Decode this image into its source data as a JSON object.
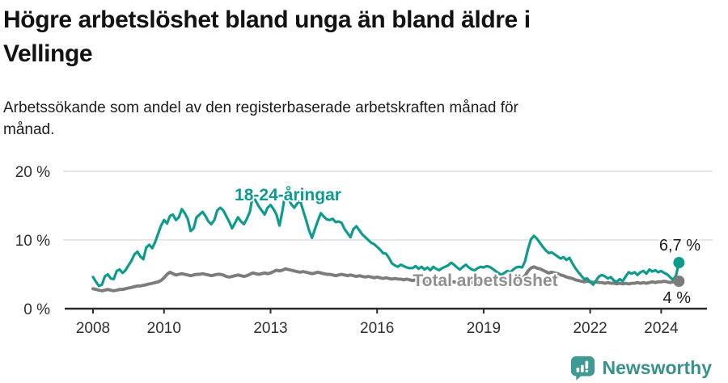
{
  "header": {
    "title_lines": [
      "Högre arbetslöshet bland unga än bland äldre i",
      "Vellinge"
    ],
    "subtitle_lines": [
      "Arbetssökande som andel av den registerbaserade arbetskraften månad för",
      "månad."
    ]
  },
  "chart_data": {
    "type": "line",
    "title": "Högre arbetslöshet bland unga än bland äldre i Vellinge",
    "subtitle": "Arbetssökande som andel av den registerbaserade arbetskraften månad för månad.",
    "unit": "%",
    "x_start_year": 2008,
    "x_step_months": 1,
    "x_end_label_values": [
      "6,7 %",
      "4 %"
    ],
    "ylim": [
      0,
      20
    ],
    "grid": "horizontal",
    "y_ticks": [
      {
        "value": 0,
        "label": "0 %"
      },
      {
        "value": 10,
        "label": "10 %"
      },
      {
        "value": 20,
        "label": "20 %"
      }
    ],
    "x_ticks": [
      {
        "year": 2008,
        "label": "2008"
      },
      {
        "year": 2010,
        "label": "2010"
      },
      {
        "year": 2013,
        "label": "2013"
      },
      {
        "year": 2016,
        "label": "2016"
      },
      {
        "year": 2019,
        "label": "2019"
      },
      {
        "year": 2022,
        "label": "2022"
      },
      {
        "year": 2024,
        "label": "2024"
      }
    ],
    "series": [
      {
        "name": "18-24-åringar",
        "color": "#0d9b8d",
        "label_color": "#0d9b8d",
        "end_label": "6,7 %",
        "last_value": 6.7,
        "values": [
          4.6,
          3.9,
          3.3,
          3.5,
          4.7,
          5.0,
          4.4,
          4.3,
          5.5,
          5.7,
          5.2,
          5.6,
          6.3,
          7.0,
          7.9,
          8.3,
          7.6,
          7.2,
          8.9,
          9.3,
          8.8,
          9.7,
          10.9,
          12.1,
          12.9,
          12.4,
          13.5,
          13.7,
          12.9,
          13.3,
          14.5,
          13.9,
          13.1,
          11.3,
          11.7,
          13.3,
          13.7,
          14.1,
          13.5,
          12.7,
          12.3,
          12.9,
          14.3,
          14.7,
          14.3,
          13.5,
          12.7,
          11.7,
          12.5,
          13.3,
          12.7,
          12.3,
          13.1,
          14.1,
          16.5,
          15.7,
          14.9,
          14.3,
          13.7,
          14.7,
          15.1,
          14.5,
          13.7,
          12.1,
          14.2,
          16.9,
          16.0,
          15.2,
          14.7,
          15.3,
          15.7,
          14.3,
          12.9,
          11.4,
          10.3,
          11.6,
          12.8,
          13.9,
          13.4,
          13.0,
          12.9,
          13.1,
          12.6,
          12.7,
          12.5,
          11.6,
          11.0,
          10.4,
          11.6,
          12.0,
          11.4,
          10.8,
          10.4,
          10.0,
          9.6,
          9.4,
          9.0,
          8.6,
          8.1,
          8.0,
          7.4,
          6.6,
          6.3,
          6.1,
          6.4,
          6.2,
          6.0,
          5.9,
          5.9,
          6.2,
          5.8,
          6.1,
          5.7,
          6.0,
          5.6,
          6.1,
          5.8,
          5.6,
          5.9,
          6.1,
          6.3,
          6.7,
          6.4,
          6.0,
          5.7,
          6.1,
          6.4,
          6.0,
          5.7,
          5.6,
          5.9,
          6.1,
          6.0,
          6.2,
          6.1,
          5.8,
          5.5,
          5.2,
          4.9,
          5.2,
          5.5,
          5.3,
          5.7,
          6.0,
          6.1,
          6.0,
          6.9,
          8.7,
          10.1,
          10.6,
          10.2,
          9.6,
          9.0,
          8.5,
          8.1,
          8.2,
          7.9,
          7.6,
          7.3,
          7.5,
          7.1,
          7.4,
          6.6,
          5.9,
          5.3,
          4.8,
          4.3,
          4.4,
          3.9,
          3.5,
          4.1,
          4.7,
          4.9,
          4.7,
          4.4,
          4.6,
          4.1,
          3.9,
          4.3,
          4.0,
          4.7,
          5.3,
          5.1,
          5.3,
          4.9,
          5.3,
          5.5,
          5.1,
          5.7,
          5.4,
          5.6,
          5.3,
          5.5,
          5.2,
          5.0,
          4.6,
          4.2,
          4.8,
          6.7
        ]
      },
      {
        "name": "Total arbetslöshet",
        "color": "#7c7c7c",
        "label_color": "#8f8f8f",
        "end_label": "4 %",
        "last_value": 4.0,
        "values": [
          2.9,
          2.8,
          2.7,
          2.6,
          2.7,
          2.8,
          2.7,
          2.6,
          2.7,
          2.8,
          2.8,
          2.9,
          3.0,
          3.1,
          3.2,
          3.3,
          3.3,
          3.4,
          3.5,
          3.6,
          3.7,
          3.8,
          3.9,
          4.1,
          4.5,
          5.0,
          5.3,
          5.1,
          4.9,
          5.0,
          5.1,
          5.0,
          4.9,
          4.8,
          4.9,
          5.0,
          5.0,
          5.1,
          5.0,
          4.9,
          4.8,
          4.9,
          5.0,
          5.0,
          4.9,
          4.7,
          4.6,
          4.7,
          4.8,
          4.9,
          4.8,
          4.7,
          4.8,
          5.0,
          5.2,
          5.1,
          5.0,
          5.1,
          5.2,
          5.1,
          5.2,
          5.4,
          5.6,
          5.5,
          5.6,
          5.8,
          5.7,
          5.6,
          5.5,
          5.4,
          5.3,
          5.4,
          5.3,
          5.2,
          5.1,
          5.2,
          5.3,
          5.2,
          5.1,
          5.0,
          5.0,
          4.9,
          4.8,
          4.9,
          5.0,
          4.9,
          4.8,
          4.9,
          4.8,
          4.7,
          4.8,
          4.7,
          4.6,
          4.7,
          4.6,
          4.5,
          4.6,
          4.5,
          4.4,
          4.5,
          4.4,
          4.3,
          4.4,
          4.3,
          4.3,
          4.2,
          4.3,
          4.2,
          4.1,
          4.2,
          4.1,
          4.0,
          4.1,
          4.0,
          4.0,
          3.9,
          4.0,
          3.9,
          4.0,
          3.9,
          4.0,
          3.9,
          3.9,
          3.8,
          3.9,
          3.8,
          3.9,
          3.8,
          3.8,
          3.9,
          3.8,
          3.9,
          3.8,
          3.9,
          4.0,
          3.9,
          3.8,
          3.9,
          4.0,
          4.1,
          4.0,
          4.1,
          4.2,
          4.1,
          4.2,
          4.3,
          4.8,
          5.5,
          5.9,
          6.1,
          5.9,
          5.8,
          5.6,
          5.4,
          5.2,
          5.3,
          5.2,
          5.1,
          4.9,
          4.8,
          4.6,
          4.5,
          4.4,
          4.2,
          4.1,
          4.0,
          3.9,
          4.0,
          3.9,
          3.8,
          3.9,
          3.8,
          3.8,
          3.7,
          3.8,
          3.7,
          3.7,
          3.6,
          3.7,
          3.6,
          3.7,
          3.6,
          3.7,
          3.7,
          3.8,
          3.7,
          3.8,
          3.7,
          3.8,
          3.9,
          3.8,
          3.9,
          3.9,
          4.0,
          3.9,
          3.8,
          3.9,
          3.9,
          4.0
        ]
      }
    ]
  },
  "footer": {
    "brand": "Newsworthy",
    "brand_color": "#38918b",
    "logo_color": "#3f9a93"
  }
}
